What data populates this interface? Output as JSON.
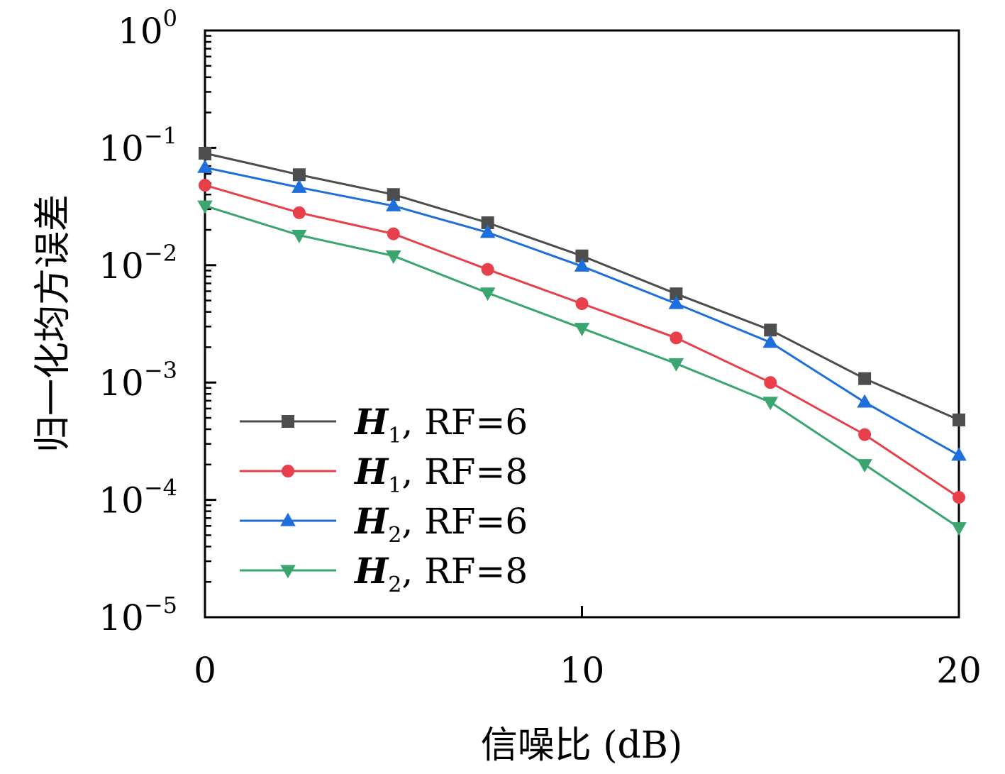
{
  "chart_data": {
    "type": "line",
    "xlabel": "信噪比 (dB)",
    "ylabel": "归一化均方误差",
    "xlim": [
      0,
      20
    ],
    "ylim": [
      1e-05,
      1
    ],
    "yscale": "log",
    "x_ticks": [
      "0",
      "10",
      "20"
    ],
    "y_ticks": [
      {
        "base": "10",
        "exp": "0"
      },
      {
        "base": "10",
        "exp": "−1"
      },
      {
        "base": "10",
        "exp": "−2"
      },
      {
        "base": "10",
        "exp": "−3"
      },
      {
        "base": "10",
        "exp": "−4"
      },
      {
        "base": "10",
        "exp": "−5"
      }
    ],
    "grid": false,
    "legend_position": "bottom-left",
    "x": [
      0,
      2.5,
      5,
      7.5,
      10,
      12.5,
      15,
      17.5,
      20
    ],
    "series": [
      {
        "legend": {
          "sym": "H",
          "sub": "1",
          "rest": ", RF=6"
        },
        "color": "#4d4d4d",
        "marker": "square",
        "values": [
          0.09,
          0.059,
          0.04,
          0.023,
          0.012,
          0.0057,
          0.0028,
          0.00108,
          0.00048
        ]
      },
      {
        "legend": {
          "sym": "H",
          "sub": "1",
          "rest": ", RF=8"
        },
        "color": "#e8404a",
        "marker": "circle",
        "values": [
          0.048,
          0.028,
          0.0185,
          0.0092,
          0.0047,
          0.0024,
          0.001,
          0.00036,
          0.000105
        ]
      },
      {
        "legend": {
          "sym": "H",
          "sub": "2",
          "rest": ", RF=6"
        },
        "color": "#1e6fdc",
        "marker": "triangle-up",
        "values": [
          0.068,
          0.046,
          0.032,
          0.019,
          0.0098,
          0.0047,
          0.0022,
          0.00068,
          0.00024
        ]
      },
      {
        "legend": {
          "sym": "H",
          "sub": "2",
          "rest": ", RF=8"
        },
        "color": "#3aa56e",
        "marker": "triangle-down",
        "values": [
          0.032,
          0.018,
          0.012,
          0.0058,
          0.0029,
          0.00145,
          0.00068,
          0.0002,
          5.8e-05
        ]
      }
    ]
  }
}
